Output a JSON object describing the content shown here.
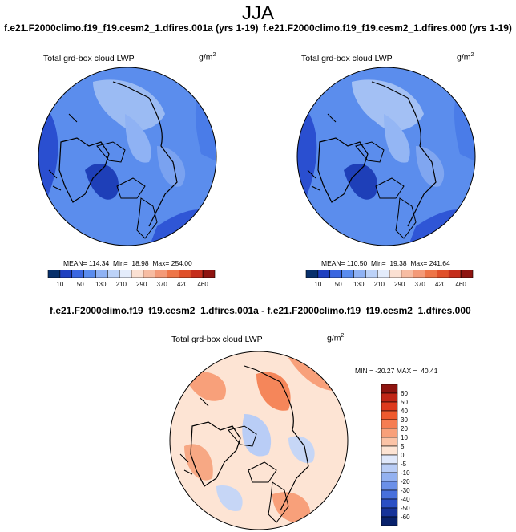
{
  "season": "JJA",
  "panels": [
    {
      "title": "f.e21.F2000climo.f19_f19.cesm2_1.dfires.001a (yrs 1-19)",
      "variable": "Total grd-box cloud LWP",
      "unit": "g/m",
      "unit_exp": "2",
      "stats": "MEAN= 114.34  Min=  18.98  Max= 254.00"
    },
    {
      "title": "f.e21.F2000climo.f19_f19.cesm2_1.dfires.000 (yrs 1-19)",
      "variable": "Total grd-box cloud LWP",
      "unit": "g/m",
      "unit_exp": "2",
      "stats": "MEAN= 110.50  Min=  19.38  Max= 241.64"
    }
  ],
  "diff_panel": {
    "title": "f.e21.F2000climo.f19_f19.cesm2_1.dfires.001a - f.e21.F2000climo.f19_f19.cesm2_1.dfires.000",
    "variable": "Total grd-box cloud LWP",
    "unit": "g/m",
    "unit_exp": "2",
    "stats": "MIN = -20.27 MAX =  40.41"
  },
  "abs_colorbar": {
    "labels": [
      "10",
      "50",
      "130",
      "210",
      "290",
      "370",
      "420",
      "460"
    ],
    "colors": [
      "#08306b",
      "#2040c0",
      "#3a66e0",
      "#5a8cee",
      "#8fb2f4",
      "#bcd2f8",
      "#e4ecfb",
      "#fbe0d2",
      "#f7bca2",
      "#f49a78",
      "#ee7548",
      "#e0502a",
      "#c52e1c",
      "#8e1410"
    ]
  },
  "diff_colorbar": {
    "labels": [
      "60",
      "50",
      "40",
      "30",
      "20",
      "10",
      "5",
      "0",
      "-5",
      "-10",
      "-20",
      "-30",
      "-40",
      "-50",
      "-60"
    ],
    "colors": [
      "#8e1410",
      "#c02617",
      "#dd3a1e",
      "#ef5a2e",
      "#f57d52",
      "#f8a07a",
      "#fbc3a6",
      "#fde4d4",
      "#dfe8fb",
      "#b9cdf6",
      "#93b1f0",
      "#6b90e8",
      "#4870dc",
      "#2a4fc4",
      "#163399",
      "#08216b"
    ]
  },
  "map_colors": {
    "abs_base": "#5b8ded",
    "abs_high": "#2a4fd0",
    "abs_low": "#a8c4f4",
    "diff_base": "#fde4d4",
    "diff_pos": "#f59b73",
    "diff_neg": "#b9cdf6"
  }
}
